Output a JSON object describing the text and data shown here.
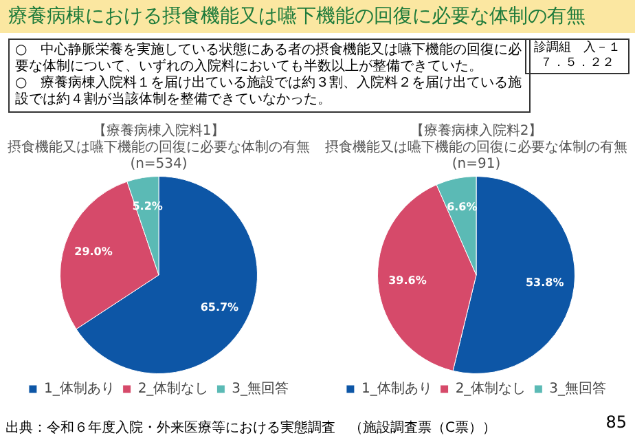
{
  "chart_data": [
    {
      "type": "other",
      "title": "療養病棟における摂食機能又は嚥下機能の回復に必要な体制の有無",
      "annotations": [
        "診調組　入－１",
        "７．５．２２",
        "○　中心静脈栄養を実施している状態にある者の摂食機能又は嚥下機能の回復に必要な体制について、いずれの入院料においても半数以上が整備できていた。",
        "○　療養病棟入院料１を届け出ている施設では約３割、入院料２を届け出ている施設では約４割が当該体制を整備できていなかった。",
        "出典：令和６年度入院・外来医療等における実態調査　（施設調査票（C票））",
        "85"
      ]
    },
    {
      "type": "pie",
      "title": "【療養病棟入院料1】",
      "subtitle": "摂食機能又は嚥下機能の回復に必要な体制の有無",
      "annotations": [
        "(n=534)"
      ],
      "categories": [
        "1_体制あり",
        "2_体制なし",
        "3_無回答"
      ],
      "values": [
        65.7,
        29.0,
        5.2
      ],
      "value_labels": [
        "65.7%",
        "29.0%",
        "5.2%"
      ],
      "colors": [
        "#0d56a6",
        "#d64a6a",
        "#5bbab5"
      ],
      "legend": "bottom"
    },
    {
      "type": "pie",
      "title": "【療養病棟入院料2】",
      "subtitle": "摂食機能又は嚥下機能の回復に必要な体制の有無",
      "annotations": [
        "(n=91)"
      ],
      "categories": [
        "1_体制あり",
        "2_体制なし",
        "3_無回答"
      ],
      "values": [
        53.8,
        39.6,
        6.6
      ],
      "value_labels": [
        "53.8%",
        "39.6%",
        "6.6%"
      ],
      "colors": [
        "#0d56a6",
        "#d64a6a",
        "#5bbab5"
      ],
      "legend": "bottom"
    }
  ]
}
